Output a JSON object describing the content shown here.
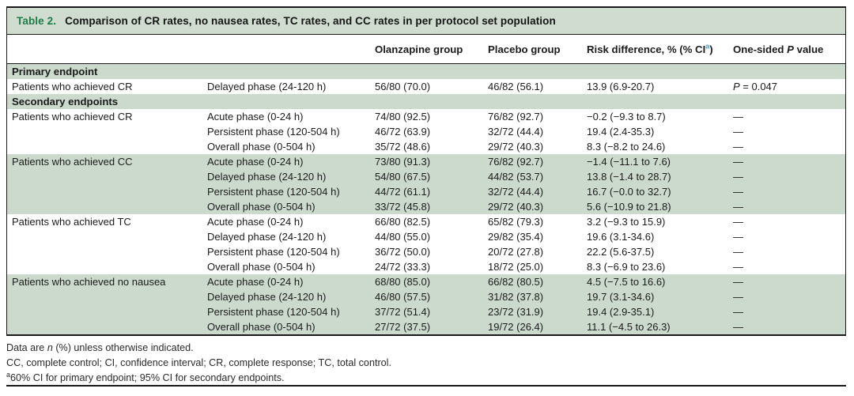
{
  "table": {
    "title": {
      "label": "Table 2.",
      "text": "Comparison of CR rates, no nausea rates, TC rates, and CC rates in per protocol set population"
    },
    "columns": {
      "olanzapine": "Olanzapine group",
      "placebo": "Placebo group",
      "risk": {
        "pre": "Risk difference, % (% CI",
        "sup": "a",
        "post": ")"
      },
      "pvalue": {
        "pre": "One-sided ",
        "italic": "P",
        "post": " value"
      }
    },
    "rows": [
      {
        "type": "section",
        "label": "Primary endpoint",
        "shaded": true
      },
      {
        "type": "data",
        "endpoint": "Patients who achieved CR",
        "phase": "Delayed phase (24-120 h)",
        "olanzapine": "56/80 (70.0)",
        "placebo": "46/82 (56.1)",
        "risk": "13.9 (6.9-20.7)",
        "p": {
          "italic": "P",
          "post": " = 0.047"
        },
        "shaded": false
      },
      {
        "type": "section",
        "label": "Secondary endpoints",
        "shaded": true
      },
      {
        "type": "data",
        "endpoint": "Patients who achieved CR",
        "phase": "Acute phase (0-24 h)",
        "olanzapine": "74/80 (92.5)",
        "placebo": "76/82 (92.7)",
        "risk": "−0.2 (−9.3 to 8.7)",
        "p": "—",
        "shaded": false
      },
      {
        "type": "data",
        "endpoint": "",
        "phase": "Persistent phase (120-504 h)",
        "olanzapine": "46/72 (63.9)",
        "placebo": "32/72 (44.4)",
        "risk": "19.4 (2.4-35.3)",
        "p": "—",
        "shaded": false
      },
      {
        "type": "data",
        "endpoint": "",
        "phase": "Overall phase (0-504 h)",
        "olanzapine": "35/72 (48.6)",
        "placebo": "29/72 (40.3)",
        "risk": "8.3 (−8.2 to 24.6)",
        "p": "—",
        "shaded": false
      },
      {
        "type": "data",
        "endpoint": "Patients who achieved CC",
        "phase": "Acute phase (0-24 h)",
        "olanzapine": "73/80 (91.3)",
        "placebo": "76/82 (92.7)",
        "risk": "−1.4 (−11.1 to 7.6)",
        "p": "—",
        "shaded": true
      },
      {
        "type": "data",
        "endpoint": "",
        "phase": "Delayed phase (24-120 h)",
        "olanzapine": "54/80 (67.5)",
        "placebo": "44/82 (53.7)",
        "risk": "13.8 (−1.4 to 28.7)",
        "p": "—",
        "shaded": true
      },
      {
        "type": "data",
        "endpoint": "",
        "phase": "Persistent phase (120-504 h)",
        "olanzapine": "44/72 (61.1)",
        "placebo": "32/72 (44.4)",
        "risk": "16.7 (−0.0 to 32.7)",
        "p": "—",
        "shaded": true
      },
      {
        "type": "data",
        "endpoint": "",
        "phase": "Overall phase (0-504 h)",
        "olanzapine": "33/72 (45.8)",
        "placebo": "29/72 (40.3)",
        "risk": "5.6 (−10.9 to 21.8)",
        "p": "—",
        "shaded": true
      },
      {
        "type": "data",
        "endpoint": "Patients who achieved TC",
        "phase": "Acute phase (0-24 h)",
        "olanzapine": "66/80 (82.5)",
        "placebo": "65/82 (79.3)",
        "risk": "3.2 (−9.3 to 15.9)",
        "p": "—",
        "shaded": false
      },
      {
        "type": "data",
        "endpoint": "",
        "phase": "Delayed phase (24-120 h)",
        "olanzapine": "44/80 (55.0)",
        "placebo": "29/82 (35.4)",
        "risk": "19.6 (3.1-34.6)",
        "p": "—",
        "shaded": false
      },
      {
        "type": "data",
        "endpoint": "",
        "phase": "Persistent phase (120-504 h)",
        "olanzapine": "36/72 (50.0)",
        "placebo": "20/72 (27.8)",
        "risk": "22.2 (5.6-37.5)",
        "p": "—",
        "shaded": false
      },
      {
        "type": "data",
        "endpoint": "",
        "phase": "Overall phase (0-504 h)",
        "olanzapine": "24/72 (33.3)",
        "placebo": "18/72 (25.0)",
        "risk": "8.3 (−6.9 to 23.6)",
        "p": "—",
        "shaded": false
      },
      {
        "type": "data",
        "endpoint": "Patients who achieved no nausea",
        "phase": "Acute phase (0-24 h)",
        "olanzapine": "68/80 (85.0)",
        "placebo": "66/82 (80.5)",
        "risk": "4.5 (−7.5 to 16.6)",
        "p": "—",
        "shaded": true
      },
      {
        "type": "data",
        "endpoint": "",
        "phase": "Delayed phase (24-120 h)",
        "olanzapine": "46/80 (57.5)",
        "placebo": "31/82 (37.8)",
        "risk": "19.7 (3.1-34.6)",
        "p": "—",
        "shaded": true
      },
      {
        "type": "data",
        "endpoint": "",
        "phase": "Persistent phase (120-504 h)",
        "olanzapine": "37/72 (51.4)",
        "placebo": "23/72 (31.9)",
        "risk": "19.4 (2.9-35.1)",
        "p": "—",
        "shaded": true
      },
      {
        "type": "data",
        "endpoint": "",
        "phase": "Overall phase (0-504 h)",
        "olanzapine": "27/72 (37.5)",
        "placebo": "19/72 (26.4)",
        "risk": "11.1 (−4.5 to 26.3)",
        "p": "—",
        "shaded": true
      }
    ],
    "footnotes": [
      {
        "pre": "Data are ",
        "italic": "n",
        "post": " (%) unless otherwise indicated."
      },
      {
        "pre": "CC, complete control; CI, confidence interval; CR, complete response; TC, total control."
      },
      {
        "sup": "a",
        "post": "60% CI for primary endpoint; 95% CI for secondary endpoints."
      }
    ],
    "colors": {
      "shaded_row_green": "#cbdacc",
      "title_bar_green": "#cfdccf",
      "table_number_green": "#1e7b48",
      "superscript_blue": "#3f9fc4",
      "border_black": "#1a1a1a"
    }
  }
}
